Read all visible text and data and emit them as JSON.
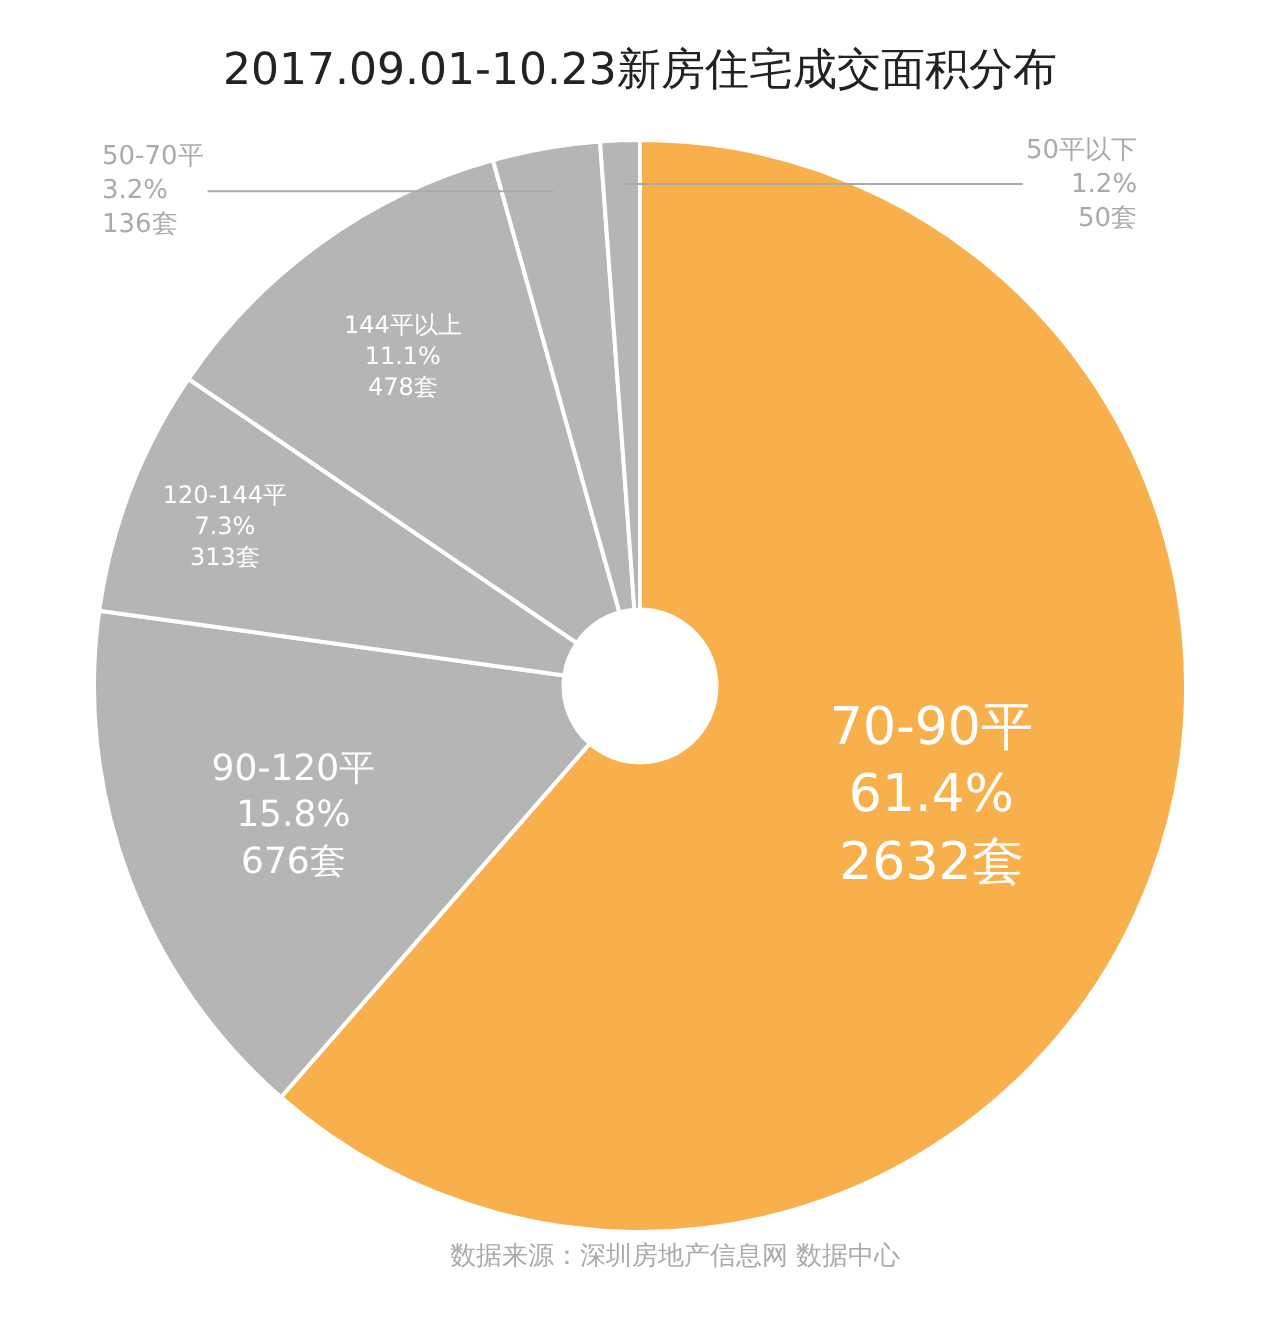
{
  "chart_data": {
    "type": "donut",
    "title": "2017.09.01-10.23新房住宅成交面积分布",
    "categories": [
      "70-90平",
      "90-120平",
      "120-144平",
      "144平以上",
      "50-70平",
      "50平以下"
    ],
    "values": [
      2632,
      676,
      313,
      478,
      136,
      50
    ],
    "value_labels": [
      "61.4%\n2632套",
      "15.8%\n676套",
      "7.3%\n313套",
      "11.1%\n478套",
      "3.2%\n136套",
      "1.2%\n50套"
    ],
    "colors": [
      "#f8b04c",
      "#b5b5b5",
      "#b5b5b5",
      "#b5b5b5",
      "#b5b5b5",
      "#b5b5b5"
    ],
    "legend": false,
    "annotations": [
      "数据来源：深圳房地产信息网 数据中心"
    ]
  }
}
